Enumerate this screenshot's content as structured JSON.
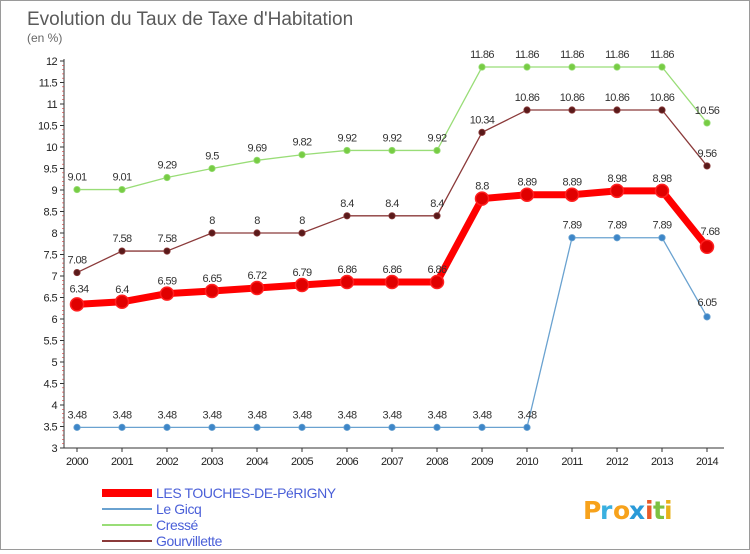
{
  "title": "Evolution du Taux de Taxe d'Habitation",
  "subtitle": "(en %)",
  "logo": "Proxiti",
  "colors": {
    "axis": "#333333",
    "grid": "#c8c8c8",
    "legend_text": "#4a5fd8"
  },
  "chart_data": {
    "type": "line",
    "title": "Evolution du Taux de Taxe d'Habitation",
    "subtitle": "(en %)",
    "xlabel": "",
    "ylabel": "",
    "x": [
      "2000",
      "2001",
      "2002",
      "2003",
      "2004",
      "2005",
      "2006",
      "2007",
      "2008",
      "2009",
      "2010",
      "2011",
      "2012",
      "2013",
      "2014"
    ],
    "ylim": [
      3,
      12
    ],
    "yticks": [
      "3",
      "3.5",
      "4",
      "4.5",
      "5",
      "5.5",
      "6",
      "6.5",
      "7",
      "7.5",
      "8",
      "8.5",
      "9",
      "9.5",
      "10",
      "10.5",
      "11",
      "11.5",
      "12"
    ],
    "grid": "none",
    "legend_position": "bottom-left",
    "series": [
      {
        "name": "LES TOUCHES-DE-PéRIGNY",
        "color": "#ff0000",
        "marker_color": "#e00000",
        "values": [
          6.34,
          6.4,
          6.59,
          6.65,
          6.72,
          6.79,
          6.86,
          6.86,
          6.86,
          8.8,
          8.89,
          8.89,
          8.98,
          8.98,
          7.68
        ],
        "labels": [
          "6.34",
          "6.4",
          "6.59",
          "6.65",
          "6.72",
          "6.79",
          "6.86",
          "6.86",
          "6.86",
          "8.8",
          "8.89",
          "8.89",
          "8.98",
          "8.98",
          "7.68"
        ]
      },
      {
        "name": "Le Gicq",
        "color": "#6aa2d0",
        "marker_color": "#3d86c8",
        "values": [
          3.48,
          3.48,
          3.48,
          3.48,
          3.48,
          3.48,
          3.48,
          3.48,
          3.48,
          3.48,
          3.48,
          7.89,
          7.89,
          7.89,
          6.05
        ],
        "labels": [
          "3.48",
          "3.48",
          "3.48",
          "3.48",
          "3.48",
          "3.48",
          "3.48",
          "3.48",
          "3.48",
          "3.48",
          "3.48",
          "7.89",
          "7.89",
          "7.89",
          "6.05"
        ]
      },
      {
        "name": "Cressé",
        "color": "#99dd77",
        "marker_color": "#77cc44",
        "values": [
          9.01,
          9.01,
          9.29,
          9.5,
          9.69,
          9.82,
          9.92,
          9.92,
          9.92,
          11.86,
          11.86,
          11.86,
          11.86,
          11.86,
          10.56
        ],
        "labels": [
          "9.01",
          "9.01",
          "9.29",
          "9.5",
          "9.69",
          "9.82",
          "9.92",
          "9.92",
          "9.92",
          "11.86",
          "11.86",
          "11.86",
          "11.86",
          "11.86",
          "10.56"
        ]
      },
      {
        "name": "Gourvillette",
        "color": "#8b3a3a",
        "marker_color": "#5a1a1a",
        "values": [
          7.08,
          7.58,
          7.58,
          8,
          8,
          8,
          8.4,
          8.4,
          8.4,
          10.34,
          10.86,
          10.86,
          10.86,
          10.86,
          9.56
        ],
        "labels": [
          "7.08",
          "7.58",
          "7.58",
          "8",
          "8",
          "8",
          "8.4",
          "8.4",
          "8.4",
          "10.34",
          "10.86",
          "10.86",
          "10.86",
          "10.86",
          "9.56"
        ]
      }
    ]
  }
}
